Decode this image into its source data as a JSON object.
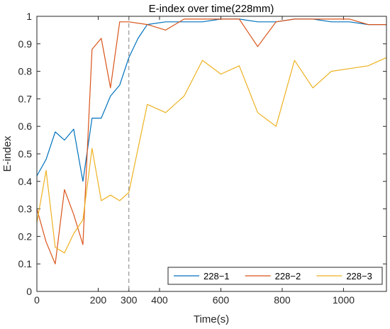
{
  "chart_data": {
    "type": "line",
    "title": "E-index over time(228mm)",
    "xlabel": "Time(s)",
    "ylabel": "E-index",
    "xlim": [
      0,
      1140
    ],
    "ylim": [
      0,
      1
    ],
    "xticks": [
      0,
      200,
      300,
      400,
      600,
      800,
      1000
    ],
    "yticks": [
      0,
      0.1,
      0.2,
      0.3,
      0.4,
      0.5,
      0.6,
      0.7,
      0.8,
      0.9,
      1
    ],
    "xtick_labels": [
      "0",
      "200",
      "300",
      "400",
      "600",
      "800",
      "1000"
    ],
    "ytick_labels": [
      "0",
      "0.1",
      "0.2",
      "0.3",
      "0.4",
      "0.5",
      "0.6",
      "0.7",
      "0.8",
      "0.9",
      "1"
    ],
    "vline": {
      "x": 300,
      "style": "dashed",
      "color": "#808080"
    },
    "grid": false,
    "legend": {
      "placement": "bottom",
      "orientation": "horizontal"
    },
    "series": [
      {
        "name": "228−1",
        "color": "#0072BD",
        "x": [
          0,
          30,
          60,
          90,
          120,
          150,
          180,
          210,
          240,
          270,
          300,
          330,
          360,
          420,
          480,
          540,
          600,
          660,
          720,
          780,
          840,
          900,
          960,
          1020,
          1080,
          1140
        ],
        "y": [
          0.42,
          0.48,
          0.58,
          0.55,
          0.59,
          0.4,
          0.63,
          0.63,
          0.71,
          0.75,
          0.85,
          0.92,
          0.97,
          0.98,
          0.98,
          0.98,
          0.99,
          0.99,
          0.98,
          0.98,
          0.99,
          0.99,
          0.98,
          0.98,
          0.97,
          0.97
        ]
      },
      {
        "name": "228−2",
        "color": "#D95319",
        "x": [
          0,
          30,
          60,
          90,
          120,
          150,
          180,
          210,
          240,
          270,
          300,
          360,
          420,
          480,
          540,
          600,
          660,
          720,
          780,
          840,
          900,
          960,
          1020,
          1080,
          1140
        ],
        "y": [
          0.3,
          0.18,
          0.1,
          0.37,
          0.28,
          0.17,
          0.88,
          0.92,
          0.74,
          0.98,
          0.98,
          0.97,
          0.95,
          0.99,
          0.99,
          0.99,
          0.99,
          0.89,
          0.98,
          0.99,
          0.99,
          0.99,
          0.99,
          0.97,
          0.97
        ]
      },
      {
        "name": "228−3",
        "color": "#EDB120",
        "x": [
          0,
          30,
          60,
          90,
          120,
          150,
          180,
          210,
          240,
          270,
          300,
          360,
          420,
          480,
          540,
          600,
          660,
          720,
          780,
          840,
          900,
          960,
          1020,
          1080,
          1140
        ],
        "y": [
          0.25,
          0.44,
          0.16,
          0.14,
          0.21,
          0.26,
          0.52,
          0.33,
          0.35,
          0.33,
          0.36,
          0.68,
          0.65,
          0.71,
          0.84,
          0.79,
          0.82,
          0.65,
          0.6,
          0.84,
          0.74,
          0.8,
          0.81,
          0.82,
          0.85
        ]
      }
    ]
  }
}
